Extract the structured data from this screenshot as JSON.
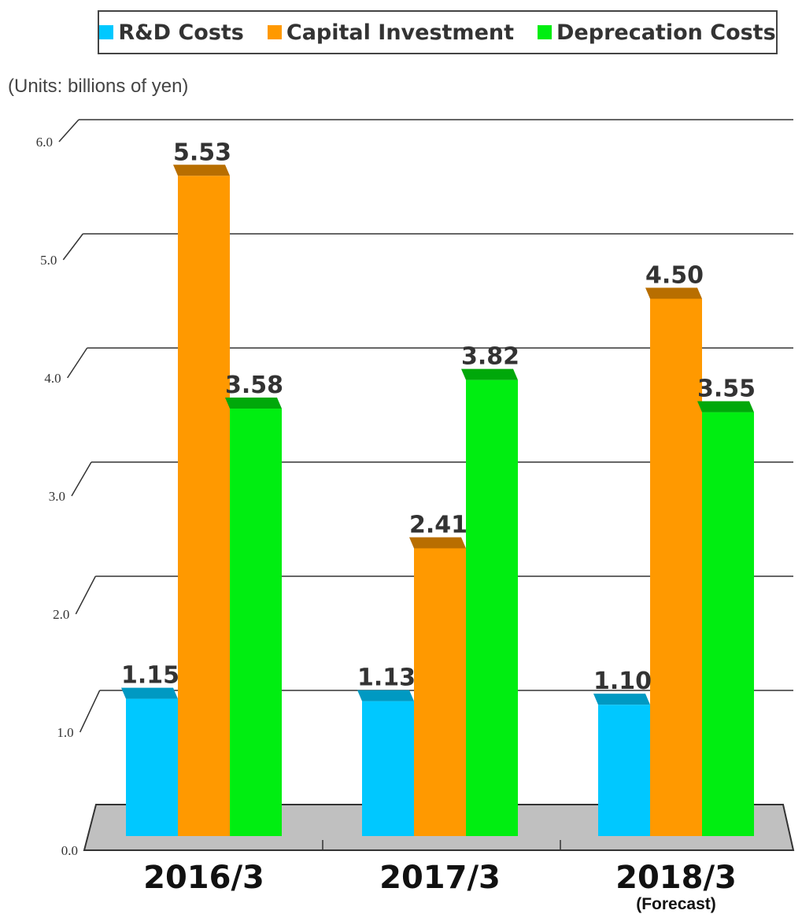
{
  "units_label": "(Units: billions of yen)",
  "legend": [
    {
      "label": "R&D Costs",
      "color": "#00c8ff"
    },
    {
      "label": "Capital Investment",
      "color": "#ff9900"
    },
    {
      "label": "Deprecation Costs",
      "color": "#00ee11"
    }
  ],
  "chart_data": {
    "type": "bar",
    "title": "",
    "xlabel": "",
    "ylabel": "",
    "ylim": [
      0,
      6.0
    ],
    "yticks": [
      "0.0",
      "1.0",
      "2.0",
      "3.0",
      "4.0",
      "5.0",
      "6.0"
    ],
    "categories": [
      "2016/3",
      "2017/3",
      "2018/3"
    ],
    "category_sublabels": [
      "",
      "",
      "(Forecast)"
    ],
    "grid": true,
    "legend_position": "top",
    "series": [
      {
        "name": "R&D Costs",
        "color": "#00c8ff",
        "dark": "#0099c2",
        "values": [
          1.15,
          1.13,
          1.1
        ],
        "labels": [
          "1.15",
          "1.13",
          "1.10"
        ]
      },
      {
        "name": "Capital Investment",
        "color": "#ff9900",
        "dark": "#b86e00",
        "values": [
          5.53,
          2.41,
          4.5
        ],
        "labels": [
          "5.53",
          "2.41",
          "4.50"
        ]
      },
      {
        "name": "Deprecation Costs",
        "color": "#00ee11",
        "dark": "#00a80a",
        "values": [
          3.58,
          3.82,
          3.55
        ],
        "labels": [
          "3.58",
          "3.82",
          "3.55"
        ]
      }
    ]
  }
}
